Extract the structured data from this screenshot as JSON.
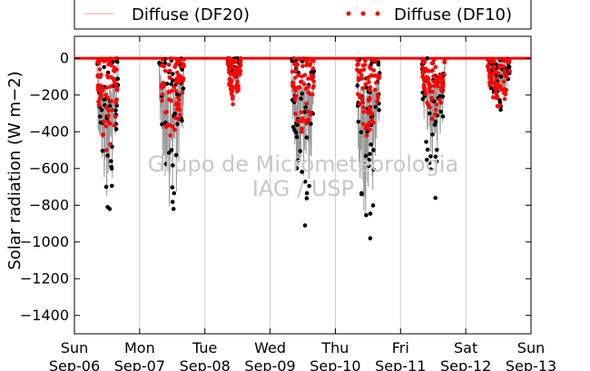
{
  "chart_data": {
    "type": "scatter",
    "ylabel": "Solar radiation (W m−2)",
    "ylim": [
      -1500,
      120
    ],
    "yticks": [
      0,
      -200,
      -400,
      -600,
      -800,
      -1000,
      -1200,
      -1400
    ],
    "xlim": [
      0,
      7
    ],
    "x_unit": "days from Sun Sep-06",
    "xticks": [
      {
        "day": "Sun",
        "date": "Sep-06"
      },
      {
        "day": "Mon",
        "date": "Sep-07"
      },
      {
        "day": "Tue",
        "date": "Sep-08"
      },
      {
        "day": "Wed",
        "date": "Sep-09"
      },
      {
        "day": "Thu",
        "date": "Sep-10"
      },
      {
        "day": "Fri",
        "date": "Sep-11"
      },
      {
        "day": "Sat",
        "date": "Sep-12"
      },
      {
        "day": "Sun",
        "date": "Sep-13"
      }
    ],
    "grid": "vertical",
    "legend_position": "top",
    "watermark": [
      "Grupo de Micrometeorologia",
      "IAG / USP"
    ],
    "colors": {
      "df20": "#999999",
      "df20_legend": "#ff9999",
      "df10": "#ff0000",
      "other_points": "#000000"
    },
    "series": [
      {
        "name": "Diffuse (DF20)",
        "style": "line",
        "days": [
          {
            "start": 0.35,
            "end": 0.67,
            "min": -790,
            "spike_width": 0.03
          },
          {
            "start": 1.3,
            "end": 1.68,
            "min": -820,
            "spike_width": 0.03
          },
          {
            "start": 2.35,
            "end": 2.55,
            "min": -230,
            "spike_width": 0.03
          },
          {
            "start": 3.33,
            "end": 3.68,
            "min": -760,
            "spike_width": 0.03
          },
          {
            "start": 4.33,
            "end": 4.68,
            "min": -900,
            "spike_width": 0.03
          },
          {
            "start": 5.33,
            "end": 5.68,
            "min": -560,
            "spike_width": 0.03
          },
          {
            "start": 6.33,
            "end": 6.68,
            "min": -250,
            "spike_width": 0.03
          }
        ]
      },
      {
        "name": "Diffuse (DF10)",
        "style": "dots",
        "days": [
          {
            "start": 0.35,
            "end": 0.67,
            "min": -500,
            "spike_width": 0.03
          },
          {
            "start": 1.3,
            "end": 1.68,
            "min": -420,
            "spike_width": 0.03
          },
          {
            "start": 2.35,
            "end": 2.55,
            "min": -250,
            "spike_width": 0.03
          },
          {
            "start": 3.33,
            "end": 3.68,
            "min": -400,
            "spike_width": 0.03
          },
          {
            "start": 4.33,
            "end": 4.68,
            "min": -420,
            "spike_width": 0.03
          },
          {
            "start": 5.33,
            "end": 5.68,
            "min": -330,
            "spike_width": 0.03
          },
          {
            "start": 6.33,
            "end": 6.68,
            "min": -260,
            "spike_width": 0.03
          }
        ]
      },
      {
        "name": "",
        "style": "dots",
        "days": [
          {
            "start": 0.35,
            "end": 0.67,
            "min": -820,
            "spike_width": 0.03
          },
          {
            "start": 1.3,
            "end": 1.68,
            "min": -820,
            "spike_width": 0.03
          },
          {
            "start": 2.35,
            "end": 2.55,
            "min": -100,
            "spike_width": 0.03
          },
          {
            "start": 3.33,
            "end": 3.68,
            "min": -910,
            "spike_width": 0.03
          },
          {
            "start": 4.33,
            "end": 4.68,
            "min": -980,
            "spike_width": 0.03
          },
          {
            "start": 5.33,
            "end": 5.68,
            "min": -760,
            "spike_width": 0.03
          },
          {
            "start": 6.33,
            "end": 6.68,
            "min": -280,
            "spike_width": 0.03
          }
        ]
      }
    ]
  }
}
